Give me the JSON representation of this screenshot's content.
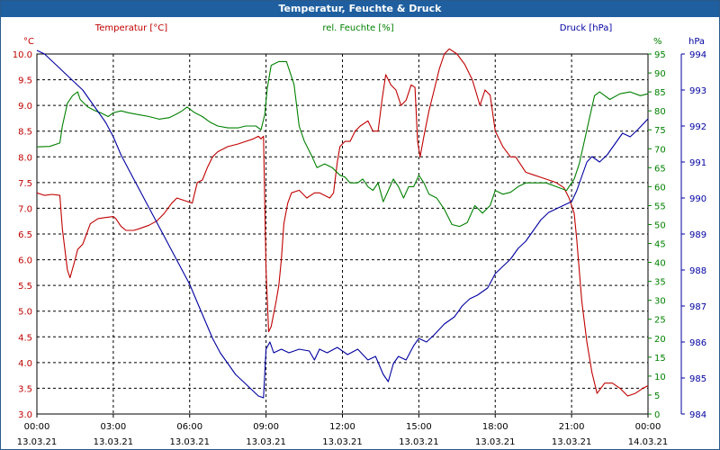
{
  "window": {
    "title": "Temperatur, Feuchte & Druck"
  },
  "chart_data": {
    "type": "line",
    "title": "Temperatur, Feuchte & Druck",
    "grid": true,
    "colors": {
      "temperature": "#c00000",
      "humidity": "#008000",
      "pressure": "#0000a0",
      "grid": "#000000"
    },
    "x_ticks": [
      {
        "time": "00:00",
        "date": "13.03.21",
        "h": 0
      },
      {
        "time": "03:00",
        "date": "13.03.21",
        "h": 3
      },
      {
        "time": "06:00",
        "date": "13.03.21",
        "h": 6
      },
      {
        "time": "09:00",
        "date": "13.03.21",
        "h": 9
      },
      {
        "time": "12:00",
        "date": "13.03.21",
        "h": 12
      },
      {
        "time": "15:00",
        "date": "13.03.21",
        "h": 15
      },
      {
        "time": "18:00",
        "date": "13.03.21",
        "h": 18
      },
      {
        "time": "21:00",
        "date": "13.03.21",
        "h": 21
      },
      {
        "time": "00:00",
        "date": "14.03.21",
        "h": 24
      }
    ],
    "axes": {
      "temperature": {
        "label": "Temperatur [°C]",
        "unit": "°C",
        "min": 3.0,
        "max": 10.0,
        "ticks": [
          "10.0",
          "9.5",
          "9.0",
          "8.5",
          "8.0",
          "7.5",
          "7.0",
          "6.5",
          "6.0",
          "5.5",
          "5.0",
          "4.5",
          "4.0",
          "3.5",
          "3.0"
        ]
      },
      "humidity": {
        "label": "rel. Feuchte [%]",
        "unit": "%",
        "min": 0,
        "max": 95,
        "ticks": [
          "95",
          "90",
          "85",
          "80",
          "75",
          "70",
          "65",
          "60",
          "55",
          "50",
          "45",
          "40",
          "35",
          "30",
          "25",
          "20",
          "15",
          "10",
          "5",
          "0"
        ]
      },
      "pressure": {
        "label": "Druck [hPa]",
        "unit": "hPa",
        "min": 984,
        "max": 994,
        "ticks": [
          "994",
          "993",
          "992",
          "991",
          "990",
          "989",
          "988",
          "987",
          "986",
          "985",
          "984"
        ]
      }
    },
    "series": [
      {
        "name": "Temperatur [°C]",
        "axis": "temperature",
        "points": [
          [
            0,
            7.3
          ],
          [
            0.3,
            7.25
          ],
          [
            0.6,
            7.27
          ],
          [
            0.9,
            7.25
          ],
          [
            1.0,
            6.6
          ],
          [
            1.2,
            5.8
          ],
          [
            1.3,
            5.65
          ],
          [
            1.5,
            6.0
          ],
          [
            1.6,
            6.2
          ],
          [
            1.8,
            6.3
          ],
          [
            2.1,
            6.7
          ],
          [
            2.4,
            6.8
          ],
          [
            2.7,
            6.82
          ],
          [
            3.0,
            6.84
          ],
          [
            3.1,
            6.8
          ],
          [
            3.3,
            6.65
          ],
          [
            3.5,
            6.57
          ],
          [
            3.8,
            6.57
          ],
          [
            4.0,
            6.6
          ],
          [
            4.4,
            6.67
          ],
          [
            4.7,
            6.75
          ],
          [
            5.0,
            6.9
          ],
          [
            5.3,
            7.1
          ],
          [
            5.5,
            7.2
          ],
          [
            5.8,
            7.15
          ],
          [
            6.1,
            7.1
          ],
          [
            6.3,
            7.5
          ],
          [
            6.5,
            7.55
          ],
          [
            6.7,
            7.8
          ],
          [
            6.9,
            8.0
          ],
          [
            7.1,
            8.1
          ],
          [
            7.5,
            8.2
          ],
          [
            7.9,
            8.25
          ],
          [
            8.2,
            8.3
          ],
          [
            8.5,
            8.35
          ],
          [
            8.7,
            8.4
          ],
          [
            8.8,
            8.35
          ],
          [
            8.9,
            8.4
          ],
          [
            9.0,
            5.8
          ],
          [
            9.1,
            4.6
          ],
          [
            9.2,
            4.7
          ],
          [
            9.4,
            5.2
          ],
          [
            9.5,
            5.5
          ],
          [
            9.6,
            6.0
          ],
          [
            9.7,
            6.7
          ],
          [
            9.85,
            7.1
          ],
          [
            10.0,
            7.3
          ],
          [
            10.3,
            7.35
          ],
          [
            10.6,
            7.2
          ],
          [
            10.9,
            7.3
          ],
          [
            11.1,
            7.3
          ],
          [
            11.3,
            7.25
          ],
          [
            11.5,
            7.2
          ],
          [
            11.65,
            7.3
          ],
          [
            11.8,
            7.9
          ],
          [
            11.9,
            8.2
          ],
          [
            12.1,
            8.3
          ],
          [
            12.3,
            8.3
          ],
          [
            12.5,
            8.5
          ],
          [
            12.7,
            8.6
          ],
          [
            13.0,
            8.7
          ],
          [
            13.2,
            8.5
          ],
          [
            13.4,
            8.5
          ],
          [
            13.55,
            9.1
          ],
          [
            13.7,
            9.6
          ],
          [
            13.9,
            9.4
          ],
          [
            14.1,
            9.3
          ],
          [
            14.3,
            9.0
          ],
          [
            14.5,
            9.1
          ],
          [
            14.7,
            9.4
          ],
          [
            14.85,
            9.35
          ],
          [
            14.95,
            8.3
          ],
          [
            15.05,
            8.0
          ],
          [
            15.2,
            8.4
          ],
          [
            15.4,
            8.9
          ],
          [
            15.6,
            9.3
          ],
          [
            15.8,
            9.7
          ],
          [
            16.0,
            10.0
          ],
          [
            16.2,
            10.1
          ],
          [
            16.5,
            10.0
          ],
          [
            16.8,
            9.8
          ],
          [
            17.1,
            9.5
          ],
          [
            17.4,
            9.0
          ],
          [
            17.6,
            9.3
          ],
          [
            17.8,
            9.2
          ],
          [
            18.0,
            8.5
          ],
          [
            18.3,
            8.2
          ],
          [
            18.6,
            8.0
          ],
          [
            18.8,
            8.0
          ],
          [
            19.2,
            7.7
          ],
          [
            19.5,
            7.65
          ],
          [
            19.8,
            7.6
          ],
          [
            20.1,
            7.55
          ],
          [
            20.4,
            7.5
          ],
          [
            20.7,
            7.4
          ],
          [
            20.9,
            7.2
          ],
          [
            21.1,
            6.9
          ],
          [
            21.2,
            6.4
          ],
          [
            21.4,
            5.2
          ],
          [
            21.6,
            4.4
          ],
          [
            21.8,
            3.8
          ],
          [
            22.0,
            3.4
          ],
          [
            22.3,
            3.6
          ],
          [
            22.6,
            3.6
          ],
          [
            22.9,
            3.5
          ],
          [
            23.2,
            3.35
          ],
          [
            23.5,
            3.4
          ],
          [
            23.8,
            3.5
          ],
          [
            24.0,
            3.55
          ]
        ]
      },
      {
        "name": "rel. Feuchte [%]",
        "axis": "humidity",
        "points": [
          [
            0,
            70.5
          ],
          [
            0.5,
            70.6
          ],
          [
            0.9,
            71.5
          ],
          [
            1.0,
            76
          ],
          [
            1.2,
            82
          ],
          [
            1.4,
            84
          ],
          [
            1.6,
            85
          ],
          [
            1.7,
            83
          ],
          [
            2.0,
            81
          ],
          [
            2.3,
            80
          ],
          [
            2.5,
            79.5
          ],
          [
            2.8,
            78.5
          ],
          [
            3.0,
            79.5
          ],
          [
            3.3,
            80
          ],
          [
            3.6,
            79.5
          ],
          [
            4.0,
            79
          ],
          [
            4.4,
            78.5
          ],
          [
            4.8,
            77.8
          ],
          [
            5.2,
            78.2
          ],
          [
            5.5,
            79.2
          ],
          [
            5.7,
            80
          ],
          [
            5.9,
            81
          ],
          [
            6.2,
            79.5
          ],
          [
            6.5,
            78.5
          ],
          [
            6.8,
            77
          ],
          [
            7.1,
            76
          ],
          [
            7.5,
            75.5
          ],
          [
            7.9,
            75.5
          ],
          [
            8.2,
            76
          ],
          [
            8.6,
            76
          ],
          [
            8.8,
            75
          ],
          [
            8.95,
            79
          ],
          [
            9.05,
            86
          ],
          [
            9.2,
            92
          ],
          [
            9.5,
            93
          ],
          [
            9.8,
            93
          ],
          [
            10.1,
            87
          ],
          [
            10.3,
            76
          ],
          [
            10.5,
            72
          ],
          [
            10.8,
            68
          ],
          [
            11.0,
            65
          ],
          [
            11.3,
            66
          ],
          [
            11.6,
            65
          ],
          [
            11.9,
            63
          ],
          [
            12.1,
            62.5
          ],
          [
            12.3,
            61
          ],
          [
            12.6,
            61
          ],
          [
            12.8,
            62
          ],
          [
            13.0,
            60
          ],
          [
            13.2,
            59
          ],
          [
            13.4,
            61
          ],
          [
            13.6,
            56
          ],
          [
            13.8,
            59
          ],
          [
            14.0,
            62
          ],
          [
            14.2,
            60
          ],
          [
            14.4,
            57
          ],
          [
            14.6,
            60
          ],
          [
            14.8,
            60
          ],
          [
            15.0,
            63
          ],
          [
            15.2,
            61
          ],
          [
            15.4,
            58
          ],
          [
            15.7,
            57
          ],
          [
            16.0,
            54
          ],
          [
            16.3,
            50
          ],
          [
            16.6,
            49.5
          ],
          [
            16.9,
            50.5
          ],
          [
            17.2,
            55
          ],
          [
            17.5,
            53
          ],
          [
            17.8,
            55
          ],
          [
            18.0,
            59
          ],
          [
            18.3,
            58
          ],
          [
            18.6,
            58.5
          ],
          [
            18.9,
            60
          ],
          [
            19.2,
            61
          ],
          [
            19.6,
            61
          ],
          [
            20.0,
            61
          ],
          [
            20.4,
            60
          ],
          [
            20.8,
            59
          ],
          [
            21.1,
            62
          ],
          [
            21.3,
            66
          ],
          [
            21.5,
            72
          ],
          [
            21.7,
            78
          ],
          [
            21.9,
            84
          ],
          [
            22.1,
            85
          ],
          [
            22.5,
            83
          ],
          [
            22.9,
            84.5
          ],
          [
            23.3,
            85
          ],
          [
            23.7,
            84
          ],
          [
            24.0,
            84.5
          ]
        ]
      },
      {
        "name": "Druck [hPa]",
        "axis": "pressure",
        "points": [
          [
            0,
            994.1
          ],
          [
            0.3,
            994.0
          ],
          [
            0.6,
            993.8
          ],
          [
            0.9,
            993.6
          ],
          [
            1.2,
            993.4
          ],
          [
            1.5,
            993.2
          ],
          [
            1.8,
            993.0
          ],
          [
            2.1,
            992.7
          ],
          [
            2.4,
            992.4
          ],
          [
            2.7,
            992.1
          ],
          [
            3.0,
            991.7
          ],
          [
            3.3,
            991.2
          ],
          [
            3.6,
            990.8
          ],
          [
            3.9,
            990.4
          ],
          [
            4.2,
            990.0
          ],
          [
            4.5,
            989.6
          ],
          [
            4.8,
            989.2
          ],
          [
            5.1,
            988.8
          ],
          [
            5.4,
            988.4
          ],
          [
            5.7,
            988.0
          ],
          [
            6.0,
            987.6
          ],
          [
            6.3,
            987.1
          ],
          [
            6.6,
            986.6
          ],
          [
            6.9,
            986.1
          ],
          [
            7.2,
            985.7
          ],
          [
            7.5,
            985.4
          ],
          [
            7.8,
            985.1
          ],
          [
            8.1,
            984.9
          ],
          [
            8.4,
            984.7
          ],
          [
            8.7,
            984.5
          ],
          [
            8.9,
            984.45
          ],
          [
            9.0,
            985.8
          ],
          [
            9.15,
            986.0
          ],
          [
            9.3,
            985.7
          ],
          [
            9.6,
            985.8
          ],
          [
            9.9,
            985.7
          ],
          [
            10.3,
            985.8
          ],
          [
            10.7,
            985.75
          ],
          [
            10.9,
            985.5
          ],
          [
            11.1,
            985.8
          ],
          [
            11.4,
            985.7
          ],
          [
            11.8,
            985.85
          ],
          [
            12.2,
            985.65
          ],
          [
            12.6,
            985.8
          ],
          [
            13.0,
            985.5
          ],
          [
            13.3,
            985.6
          ],
          [
            13.6,
            985.1
          ],
          [
            13.8,
            984.9
          ],
          [
            14.0,
            985.4
          ],
          [
            14.2,
            985.6
          ],
          [
            14.5,
            985.5
          ],
          [
            14.8,
            985.9
          ],
          [
            15.0,
            986.1
          ],
          [
            15.3,
            986.0
          ],
          [
            15.6,
            986.2
          ],
          [
            16.0,
            986.5
          ],
          [
            16.4,
            986.7
          ],
          [
            16.7,
            987.0
          ],
          [
            17.0,
            987.2
          ],
          [
            17.3,
            987.3
          ],
          [
            17.7,
            987.5
          ],
          [
            18.0,
            987.9
          ],
          [
            18.3,
            988.1
          ],
          [
            18.6,
            988.3
          ],
          [
            18.9,
            988.6
          ],
          [
            19.2,
            988.8
          ],
          [
            19.5,
            989.1
          ],
          [
            19.8,
            989.4
          ],
          [
            20.1,
            989.6
          ],
          [
            20.4,
            989.7
          ],
          [
            20.7,
            989.8
          ],
          [
            21.0,
            989.9
          ],
          [
            21.2,
            990.2
          ],
          [
            21.4,
            990.6
          ],
          [
            21.6,
            991.0
          ],
          [
            21.8,
            991.15
          ],
          [
            22.1,
            991.0
          ],
          [
            22.4,
            991.2
          ],
          [
            22.7,
            991.5
          ],
          [
            23.0,
            991.8
          ],
          [
            23.3,
            991.7
          ],
          [
            23.6,
            991.9
          ],
          [
            24.0,
            992.2
          ]
        ]
      }
    ]
  }
}
